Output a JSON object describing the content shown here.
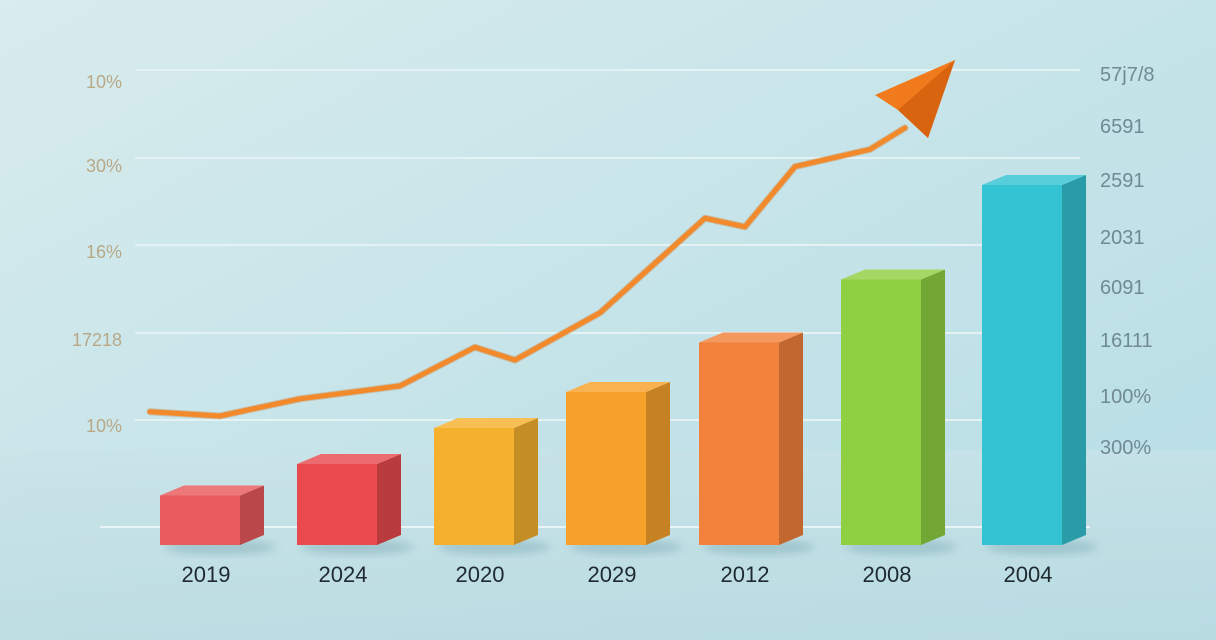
{
  "chart_data": {
    "type": "bar",
    "title": "",
    "xlabel": "",
    "ylabel": "",
    "categories": [
      "2019",
      "2024",
      "2020",
      "2029",
      "2012",
      "2008",
      "2004"
    ],
    "series": [
      {
        "kind": "bar",
        "values": [
          1.1,
          1.8,
          2.6,
          3.4,
          4.5,
          5.9,
          8.0
        ],
        "colors": [
          "#e85a5c",
          "#e84a4e",
          "#f5b12e",
          "#f7a12a",
          "#f2813b",
          "#8fcf42",
          "#33c3d2"
        ]
      },
      {
        "kind": "line",
        "values": [
          2.4,
          3.2,
          4.7,
          5.6,
          6.7,
          8.1,
          9.7
        ],
        "color": "#f2892a"
      }
    ],
    "ylim": [
      0,
      10
    ],
    "y_tick_labels_left": [
      "10%",
      "30%",
      "16%",
      "17218",
      "10%"
    ],
    "y_tick_labels_right": [
      "57j7/8",
      "6591",
      "2591",
      "2031",
      "6091",
      "16111",
      "100%",
      "300%"
    ],
    "grid": true,
    "legend": "none"
  }
}
